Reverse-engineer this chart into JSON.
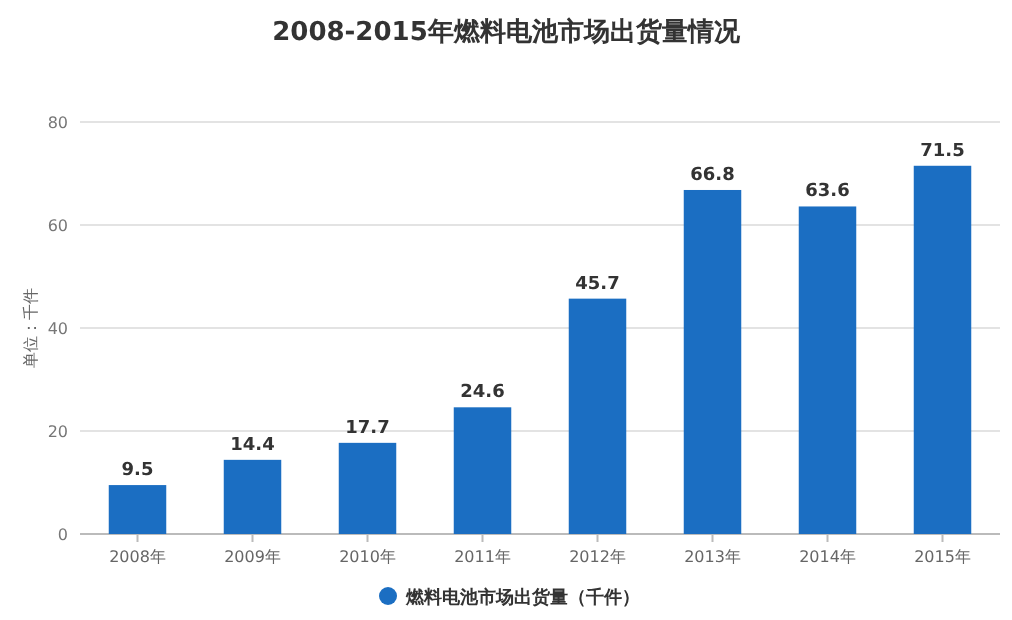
{
  "chart_data": {
    "type": "bar",
    "title": "2008-2015年燃料电池市场出货量情况",
    "ylabel": "单位：千件",
    "categories": [
      "2008年",
      "2009年",
      "2010年",
      "2011年",
      "2012年",
      "2013年",
      "2014年",
      "2015年"
    ],
    "series": [
      {
        "name": "燃料电池市场出货量（千件）",
        "color": "#1b6ec2",
        "values": [
          9.5,
          14.4,
          17.7,
          24.6,
          45.7,
          66.8,
          63.6,
          71.5
        ]
      }
    ],
    "ylim": [
      0,
      80
    ],
    "yticks": [
      0,
      20,
      40,
      60,
      80
    ],
    "grid": "y",
    "legend": "bottom",
    "data_labels": true
  }
}
